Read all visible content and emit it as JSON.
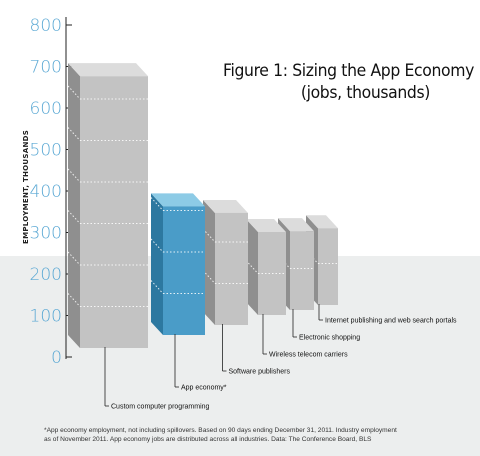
{
  "title_line1": "Figure 1: Sizing the App Economy",
  "title_line2": "(jobs, thousands)",
  "footnote_line1": "*App economy employment, not including spillovers. Based on 90 days ending December 31, 2011. Industry employment",
  "footnote_line2": "as of November 2011. App economy jobs are distributed across all industries. Data: The Conference Board, BLS",
  "colors": {
    "axis_ticks": "#5aa8d4",
    "bar_front": "#c3c3c3",
    "bar_side": "#8f8f8f",
    "bar_top": "#dcdcdc",
    "highlight_front": "#4a9cc8",
    "highlight_side": "#2d78a0",
    "highlight_top": "#8dcbe6",
    "background_band": "#eceeee"
  },
  "chart_data": {
    "type": "bar",
    "title": "Figure 1: Sizing the App Economy (jobs, thousands)",
    "ylabel": "EMPLOYMENT, THOUSANDS",
    "xlabel": "",
    "ylim": [
      0,
      800
    ],
    "yticks": [
      "0",
      "100",
      "200",
      "300",
      "400",
      "500",
      "600",
      "700",
      "800"
    ],
    "categories": [
      "Custom computer programming",
      "App economy*",
      "Software publishers",
      "Wireless telecom carriers",
      "Electronic shopping",
      "Internet publishing and web search portals"
    ],
    "values": [
      655,
      310,
      270,
      200,
      190,
      185
    ],
    "highlight_index": 1,
    "grid": false
  }
}
